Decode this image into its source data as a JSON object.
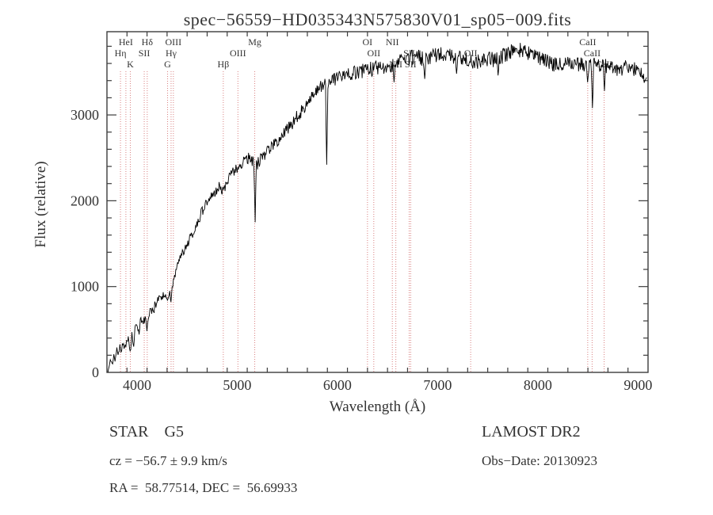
{
  "title": "spec−56559−HD035343N575830V01_sp05−009.fits",
  "annotations": {
    "object_class": "STAR    G5",
    "survey": "LAMOST DR2",
    "cz": "cz = −56.7 ± 9.9 km/s",
    "obs_date": "Obs−Date: 20130923",
    "coords": "RA =  58.77514, DEC =  56.69933"
  },
  "chart_data": {
    "type": "line",
    "title": "spec−56559−HD035343N575830V01_sp05−009.fits",
    "xlabel": "Wavelength (Å)",
    "ylabel": "Flux (relative)",
    "xlim": [
      3700,
      9100
    ],
    "ylim": [
      0,
      3970
    ],
    "x_major_ticks": [
      4000,
      5000,
      6000,
      7000,
      8000,
      9000
    ],
    "x_minor_step": 200,
    "y_major_ticks": [
      0,
      1000,
      2000,
      3000
    ],
    "y_minor_step": 200,
    "grid": false,
    "line_color": "#000000",
    "marker_color": "#d98080",
    "frame_color": "#3c3c3c",
    "line_markers": [
      {
        "label": "Hη",
        "wl": 3835,
        "row": 2
      },
      {
        "label": "HeI",
        "wl": 3889,
        "row": 1
      },
      {
        "label": "K",
        "wl": 3933,
        "row": 3
      },
      {
        "label": "SII",
        "wl": 4072,
        "row": 2
      },
      {
        "label": "Hδ",
        "wl": 4102,
        "row": 1
      },
      {
        "label": "G",
        "wl": 4305,
        "row": 3
      },
      {
        "label": "Hγ",
        "wl": 4340,
        "row": 2
      },
      {
        "label": "OIII",
        "wl": 4363,
        "row": 1
      },
      {
        "label": "Hβ",
        "wl": 4861,
        "row": 3
      },
      {
        "label": "OIII",
        "wl": 5007,
        "row": 2
      },
      {
        "label": "Mg",
        "wl": 5175,
        "row": 1
      },
      {
        "label": "OI",
        "wl": 6300,
        "row": 1
      },
      {
        "label": "OII",
        "wl": 6363,
        "row": 2
      },
      {
        "label": "NII",
        "wl": 6548,
        "row": 1
      },
      {
        "label": "NII",
        "wl": 6583,
        "row": 3
      },
      {
        "label": "SII",
        "wl": 6716,
        "row": 2
      },
      {
        "label": "SII",
        "wl": 6731,
        "row": 3
      },
      {
        "label": "OII",
        "wl": 7330,
        "row": 2
      },
      {
        "label": "CaII",
        "wl": 8498,
        "row": 1
      },
      {
        "label": "CaII",
        "wl": 8542,
        "row": 2
      },
      {
        "label": "CaII",
        "wl": 8662,
        "row": 3
      }
    ],
    "spectrum": {
      "anchors": [
        [
          3709,
          30
        ],
        [
          3725,
          90
        ],
        [
          3740,
          170
        ],
        [
          3755,
          60
        ],
        [
          3770,
          220
        ],
        [
          3785,
          140
        ],
        [
          3800,
          260
        ],
        [
          3815,
          180
        ],
        [
          3830,
          300
        ],
        [
          3845,
          230
        ],
        [
          3860,
          360
        ],
        [
          3875,
          280
        ],
        [
          3890,
          330
        ],
        [
          3905,
          420
        ],
        [
          3920,
          340
        ],
        [
          3933,
          280
        ],
        [
          3948,
          430
        ],
        [
          3963,
          380
        ],
        [
          3980,
          500
        ],
        [
          4000,
          560
        ],
        [
          4020,
          480
        ],
        [
          4040,
          620
        ],
        [
          4060,
          540
        ],
        [
          4080,
          650
        ],
        [
          4100,
          570
        ],
        [
          4120,
          680
        ],
        [
          4140,
          720
        ],
        [
          4160,
          690
        ],
        [
          4180,
          780
        ],
        [
          4200,
          820
        ],
        [
          4220,
          870
        ],
        [
          4240,
          840
        ],
        [
          4260,
          910
        ],
        [
          4280,
          880
        ],
        [
          4300,
          860
        ],
        [
          4320,
          900
        ],
        [
          4340,
          950
        ],
        [
          4360,
          1050
        ],
        [
          4380,
          1150
        ],
        [
          4400,
          1250
        ],
        [
          4430,
          1330
        ],
        [
          4460,
          1400
        ],
        [
          4490,
          1470
        ],
        [
          4520,
          1540
        ],
        [
          4550,
          1610
        ],
        [
          4580,
          1680
        ],
        [
          4610,
          1760
        ],
        [
          4640,
          1850
        ],
        [
          4670,
          1930
        ],
        [
          4700,
          2000
        ],
        [
          4730,
          2040
        ],
        [
          4760,
          2080
        ],
        [
          4790,
          2130
        ],
        [
          4820,
          2170
        ],
        [
          4861,
          2090
        ],
        [
          4890,
          2220
        ],
        [
          4920,
          2270
        ],
        [
          4950,
          2310
        ],
        [
          4980,
          2350
        ],
        [
          5010,
          2390
        ],
        [
          5040,
          2430
        ],
        [
          5070,
          2470
        ],
        [
          5100,
          2500
        ],
        [
          5130,
          2490
        ],
        [
          5160,
          2450
        ],
        [
          5190,
          2410
        ],
        [
          5220,
          2460
        ],
        [
          5250,
          2510
        ],
        [
          5280,
          2550
        ],
        [
          5310,
          2580
        ],
        [
          5340,
          2620
        ],
        [
          5370,
          2650
        ],
        [
          5400,
          2690
        ],
        [
          5440,
          2740
        ],
        [
          5480,
          2800
        ],
        [
          5520,
          2860
        ],
        [
          5560,
          2920
        ],
        [
          5600,
          2980
        ],
        [
          5640,
          3050
        ],
        [
          5680,
          3120
        ],
        [
          5720,
          3180
        ],
        [
          5760,
          3240
        ],
        [
          5800,
          3290
        ],
        [
          5840,
          3330
        ],
        [
          5880,
          3350
        ],
        [
          5920,
          3360
        ],
        [
          5960,
          3390
        ],
        [
          6000,
          3420
        ],
        [
          6050,
          3450
        ],
        [
          6100,
          3470
        ],
        [
          6150,
          3490
        ],
        [
          6200,
          3500
        ],
        [
          6250,
          3510
        ],
        [
          6300,
          3520
        ],
        [
          6350,
          3540
        ],
        [
          6400,
          3550
        ],
        [
          6450,
          3560
        ],
        [
          6500,
          3570
        ],
        [
          6550,
          3590
        ],
        [
          6600,
          3610
        ],
        [
          6650,
          3630
        ],
        [
          6700,
          3650
        ],
        [
          6750,
          3670
        ],
        [
          6800,
          3680
        ],
        [
          6850,
          3660
        ],
        [
          6900,
          3660
        ],
        [
          6950,
          3680
        ],
        [
          7000,
          3700
        ],
        [
          7050,
          3700
        ],
        [
          7100,
          3690
        ],
        [
          7150,
          3670
        ],
        [
          7200,
          3660
        ],
        [
          7250,
          3650
        ],
        [
          7300,
          3650
        ],
        [
          7350,
          3630
        ],
        [
          7400,
          3620
        ],
        [
          7450,
          3640
        ],
        [
          7500,
          3660
        ],
        [
          7550,
          3640
        ],
        [
          7600,
          3640
        ],
        [
          7650,
          3680
        ],
        [
          7700,
          3710
        ],
        [
          7750,
          3740
        ],
        [
          7800,
          3760
        ],
        [
          7850,
          3740
        ],
        [
          7900,
          3720
        ],
        [
          7950,
          3700
        ],
        [
          8000,
          3680
        ],
        [
          8050,
          3650
        ],
        [
          8100,
          3620
        ],
        [
          8150,
          3600
        ],
        [
          8200,
          3580
        ],
        [
          8250,
          3600
        ],
        [
          8300,
          3620
        ],
        [
          8350,
          3610
        ],
        [
          8400,
          3600
        ],
        [
          8450,
          3580
        ],
        [
          8500,
          3560
        ],
        [
          8550,
          3580
        ],
        [
          8600,
          3600
        ],
        [
          8650,
          3580
        ],
        [
          8700,
          3560
        ],
        [
          8750,
          3540
        ],
        [
          8800,
          3520
        ],
        [
          8850,
          3540
        ],
        [
          8900,
          3560
        ],
        [
          8950,
          3540
        ],
        [
          9000,
          3520
        ],
        [
          9040,
          3480
        ],
        [
          9087,
          3430
        ]
      ],
      "absorption_spikes": [
        [
          3933,
          250
        ],
        [
          3968,
          300
        ],
        [
          4101,
          480
        ],
        [
          4340,
          820
        ],
        [
          5178,
          1750
        ],
        [
          5890,
          2420
        ],
        [
          6563,
          3380
        ],
        [
          6870,
          3420
        ],
        [
          7190,
          3480
        ],
        [
          7600,
          3460
        ],
        [
          8498,
          3380
        ],
        [
          8542,
          3080
        ],
        [
          8662,
          3280
        ]
      ],
      "noise": {
        "base": 25,
        "scale": 0.018,
        "low_wl_boost": 1.5,
        "low_wl_limit": 4200,
        "seed": 123456789,
        "step": 6
      }
    }
  }
}
